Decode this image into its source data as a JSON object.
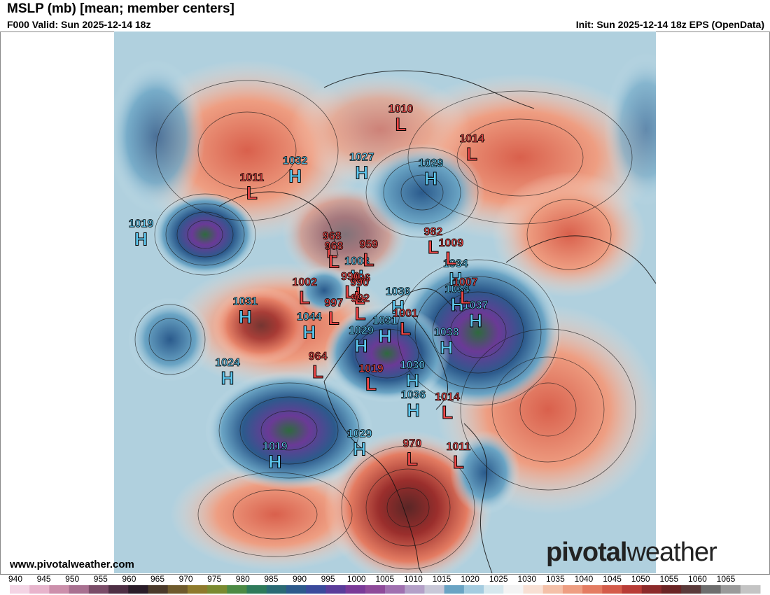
{
  "header": {
    "title": "MSLP (mb) [mean; member centers]",
    "valid": "F000 Valid: Sun 2025-12-14 18z",
    "init": "Init: Sun 2025-12-14 18z EPS (OpenData)"
  },
  "footer": {
    "site": "www.pivotalweather.com",
    "brand_left": "pivotal",
    "brand_right": "weather"
  },
  "colorbar": {
    "ticks": [
      "940",
      "945",
      "950",
      "955",
      "960",
      "965",
      "970",
      "975",
      "980",
      "985",
      "990",
      "995",
      "1000",
      "1005",
      "1010",
      "1015",
      "1020",
      "1025",
      "1030",
      "1035",
      "1040",
      "1045",
      "1050",
      "1055",
      "1060",
      "1065"
    ],
    "colors": [
      "#f4d4e4",
      "#e8b4cc",
      "#cc8fab",
      "#a87090",
      "#7a4c68",
      "#4e2f44",
      "#2a1c28",
      "#4a3a2a",
      "#6e5a2c",
      "#8e7a2c",
      "#7a8a30",
      "#4c8a44",
      "#2e7a5a",
      "#2a6a74",
      "#2c5a8c",
      "#3a4a9c",
      "#5a3c9a",
      "#7a3a98",
      "#8e4a9a",
      "#a070b0",
      "#b4a0c8",
      "#c8c8d8",
      "#6aa4c4",
      "#a4cce0",
      "#d6e8ee",
      "#f4f4f4",
      "#f8e0d4",
      "#f4c0a8",
      "#ee9e82",
      "#e47c62",
      "#d45c4a",
      "#b83c36",
      "#8c2a2a",
      "#6a2424",
      "#5a3a3a",
      "#6e6e6e",
      "#9a9a9a",
      "#c4c4c4"
    ]
  },
  "map_labels": [
    {
      "type": "H",
      "value": "1029",
      "lon": -110,
      "lat": 38
    },
    {
      "type": "H",
      "value": "1034",
      "lon": 10,
      "lat": 62
    },
    {
      "type": "H",
      "value": "1034",
      "lon": -10,
      "lat": 63
    },
    {
      "type": "H",
      "value": "1037",
      "lon": -20,
      "lat": 56
    },
    {
      "type": "H",
      "value": "1029",
      "lon": 60,
      "lat": 42
    },
    {
      "type": "H",
      "value": "1027",
      "lon": 90,
      "lat": 42
    },
    {
      "type": "H",
      "value": "1032",
      "lon": 115,
      "lat": 35
    },
    {
      "type": "H",
      "value": "1038",
      "lon": -45,
      "lat": 62
    },
    {
      "type": "H",
      "value": "1036",
      "lon": -20,
      "lat": 85
    },
    {
      "type": "H",
      "value": "1030",
      "lon": -80,
      "lat": 60
    },
    {
      "type": "H",
      "value": "1036",
      "lon": -85,
      "lat": 50
    },
    {
      "type": "H",
      "value": "1031",
      "lon": -100,
      "lat": 78
    },
    {
      "type": "H",
      "value": "1029",
      "lon": -130,
      "lat": 72
    },
    {
      "type": "H",
      "value": "1003",
      "lon": 125,
      "lat": 75
    },
    {
      "type": "H",
      "value": "1031",
      "lon": 175,
      "lat": 40
    },
    {
      "type": "H",
      "value": "1019",
      "lon": -135,
      "lat": 25
    },
    {
      "type": "H",
      "value": "1024",
      "lon": -165,
      "lat": 30
    },
    {
      "type": "H",
      "value": "1044",
      "lon": -170,
      "lat": 60
    },
    {
      "type": "H",
      "value": "1019",
      "lon": 155,
      "lat": 10
    },
    {
      "type": "L",
      "value": "1011",
      "lon": -75,
      "lat": 30
    },
    {
      "type": "L",
      "value": "1007",
      "lon": -5,
      "lat": 60
    },
    {
      "type": "L",
      "value": "1009",
      "lon": 25,
      "lat": 60
    },
    {
      "type": "L",
      "value": "1014",
      "lon": 50,
      "lat": 30
    },
    {
      "type": "L",
      "value": "1010",
      "lon": 75,
      "lat": 28
    },
    {
      "type": "L",
      "value": "1014",
      "lon": -70,
      "lat": 45
    },
    {
      "type": "L",
      "value": "970",
      "lon": -90,
      "lat": 35
    },
    {
      "type": "L",
      "value": "982",
      "lon": 40,
      "lat": 62
    },
    {
      "type": "L",
      "value": "1001",
      "lon": -60,
      "lat": 78
    },
    {
      "type": "L",
      "value": "1019",
      "lon": -110,
      "lat": 60
    },
    {
      "type": "L",
      "value": "996",
      "lon": 145,
      "lat": 80
    },
    {
      "type": "L",
      "value": "990",
      "lon": 155,
      "lat": 80
    },
    {
      "type": "L",
      "value": "990",
      "lon": 150,
      "lat": 76
    },
    {
      "type": "L",
      "value": "959",
      "lon": 100,
      "lat": 72
    },
    {
      "type": "L",
      "value": "968",
      "lon": 125,
      "lat": 62
    },
    {
      "type": "L",
      "value": "968",
      "lon": 130,
      "lat": 65
    },
    {
      "type": "L",
      "value": "992",
      "lon": -170,
      "lat": 80
    },
    {
      "type": "L",
      "value": "964",
      "lon": -145,
      "lat": 55
    },
    {
      "type": "L",
      "value": "997",
      "lon": -175,
      "lat": 70
    },
    {
      "type": "L",
      "value": "1002",
      "lon": 165,
      "lat": 60
    },
    {
      "type": "L",
      "value": "1011",
      "lon": 130,
      "lat": 30
    }
  ]
}
